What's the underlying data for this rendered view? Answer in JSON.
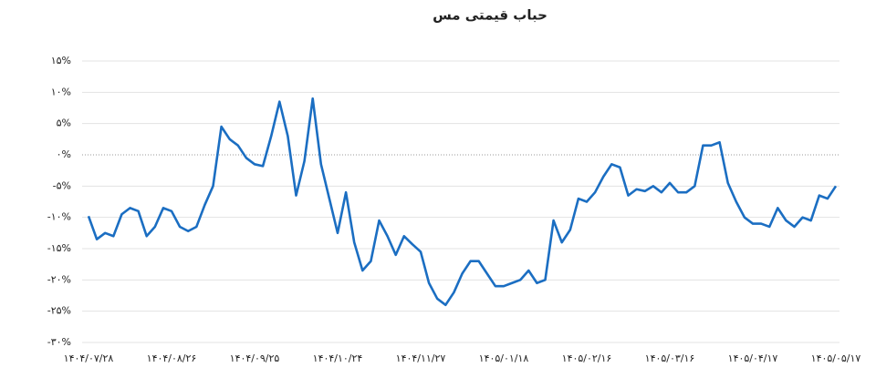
{
  "chart_data": {
    "type": "line",
    "title": "حباب قیمتی مس",
    "categories": [
      "۱۴۰۴/۰۷/۲۸",
      null,
      null,
      null,
      null,
      null,
      null,
      null,
      null,
      null,
      "۱۴۰۴/۰۸/۲۶",
      null,
      null,
      null,
      null,
      null,
      null,
      null,
      null,
      null,
      "۱۴۰۴/۰۹/۲۵",
      null,
      null,
      null,
      null,
      null,
      null,
      null,
      null,
      null,
      "۱۴۰۴/۱۰/۲۴",
      null,
      null,
      null,
      null,
      null,
      null,
      null,
      null,
      null,
      "۱۴۰۴/۱۱/۲۷",
      null,
      null,
      null,
      null,
      null,
      null,
      null,
      null,
      null,
      "۱۴۰۵/۰۱/۱۸",
      null,
      null,
      null,
      null,
      null,
      null,
      null,
      null,
      null,
      "۱۴۰۵/۰۲/۱۶",
      null,
      null,
      null,
      null,
      null,
      null,
      null,
      null,
      null,
      "۱۴۰۵/۰۳/۱۶",
      null,
      null,
      null,
      null,
      null,
      null,
      null,
      null,
      null,
      "۱۴۰۵/۰۴/۱۷",
      null,
      null,
      null,
      null,
      null,
      null,
      null,
      null,
      null,
      "۱۴۰۵/۰۵/۱۷"
    ],
    "values": [
      -9.8,
      -13.5,
      -12.5,
      -13,
      -9.5,
      -8.5,
      -9,
      -13,
      -11.5,
      -8.5,
      -9,
      -11.5,
      -12.2,
      -11.5,
      -8,
      -5,
      4.5,
      2.5,
      1.5,
      -0.5,
      -1.5,
      -1.8,
      3,
      8.5,
      3,
      -6.5,
      -1,
      9,
      -1.5,
      -7,
      -12.5,
      -6,
      -14,
      -18.5,
      -17,
      -10.5,
      -13,
      -16,
      -13,
      -14.3,
      -15.5,
      -20.5,
      -23,
      -24,
      -22,
      -19,
      -17,
      -17,
      -19,
      -21,
      -21,
      -20.5,
      -20,
      -18.5,
      -20.5,
      -20,
      -10.5,
      -14,
      -12,
      -7,
      -7.5,
      -6,
      -3.5,
      -1.5,
      -2,
      -6.5,
      -5.5,
      -5.8,
      -5,
      -6,
      -4.5,
      -6,
      -6,
      -5,
      1.5,
      1.5,
      2,
      -4.5,
      -7.5,
      -10,
      -11,
      -11,
      -11.5,
      -8.5,
      -10.5,
      -11.5,
      -10,
      -10.5,
      -6.5,
      -7,
      -5
    ],
    "color": "#1b6ec2",
    "ylim": [
      -30,
      15
    ],
    "yticks": [
      {
        "value": 15,
        "label": "۱۵%"
      },
      {
        "value": 10,
        "label": "۱۰%"
      },
      {
        "value": 5,
        "label": "۵%"
      },
      {
        "value": 0,
        "label": "۰%"
      },
      {
        "value": -5,
        "label": "-۵%"
      },
      {
        "value": -10,
        "label": "-۱۰%"
      },
      {
        "value": -15,
        "label": "-۱۵%"
      },
      {
        "value": -20,
        "label": "-۲۰%"
      },
      {
        "value": -25,
        "label": "-۲۵%"
      },
      {
        "value": -30,
        "label": "-۳۰%"
      }
    ],
    "grid": true
  }
}
